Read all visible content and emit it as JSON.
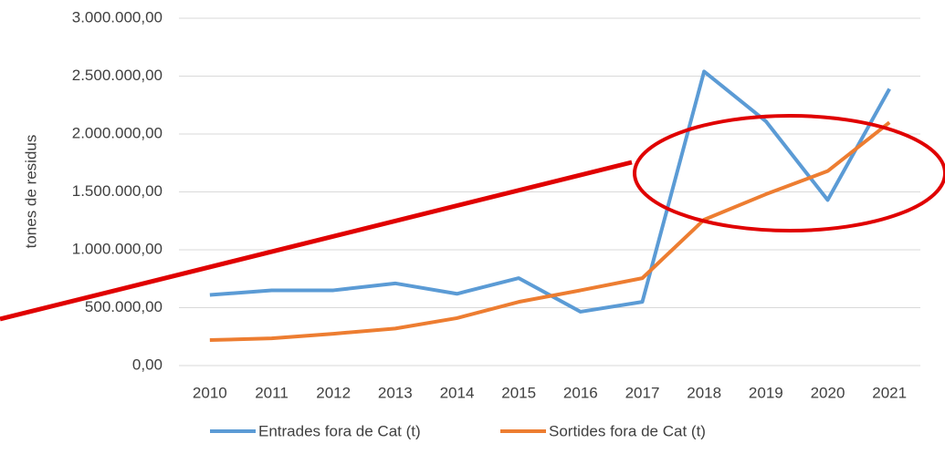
{
  "chart_data": {
    "type": "line",
    "y_axis_label": "tones de residus",
    "categories": [
      "2010",
      "2011",
      "2012",
      "2013",
      "2014",
      "2015",
      "2016",
      "2017",
      "2018",
      "2019",
      "2020",
      "2021"
    ],
    "series": [
      {
        "name": "Entrades fora de Cat (t)",
        "color": "#5b9bd5",
        "values": [
          610000,
          650000,
          650000,
          710000,
          620000,
          755000,
          465000,
          550000,
          2540000,
          2110000,
          1430000,
          2390000
        ]
      },
      {
        "name": "Sortides fora de Cat (t)",
        "color": "#ed7d31",
        "values": [
          220000,
          235000,
          275000,
          320000,
          410000,
          550000,
          650000,
          755000,
          1260000,
          1480000,
          1680000,
          2100000
        ]
      }
    ],
    "ylim": [
      0,
      3000000
    ],
    "yticks": [
      {
        "value": 0,
        "label": "0,00"
      },
      {
        "value": 500000,
        "label": "500.000,00"
      },
      {
        "value": 1000000,
        "label": "1.000.000,00"
      },
      {
        "value": 1500000,
        "label": "1.500.000,00"
      },
      {
        "value": 2000000,
        "label": "2.000.000,00"
      },
      {
        "value": 2500000,
        "label": "2.500.000,00"
      },
      {
        "value": 3000000,
        "label": "3.000.000,00"
      }
    ],
    "grid": true,
    "legend": "bottom"
  }
}
